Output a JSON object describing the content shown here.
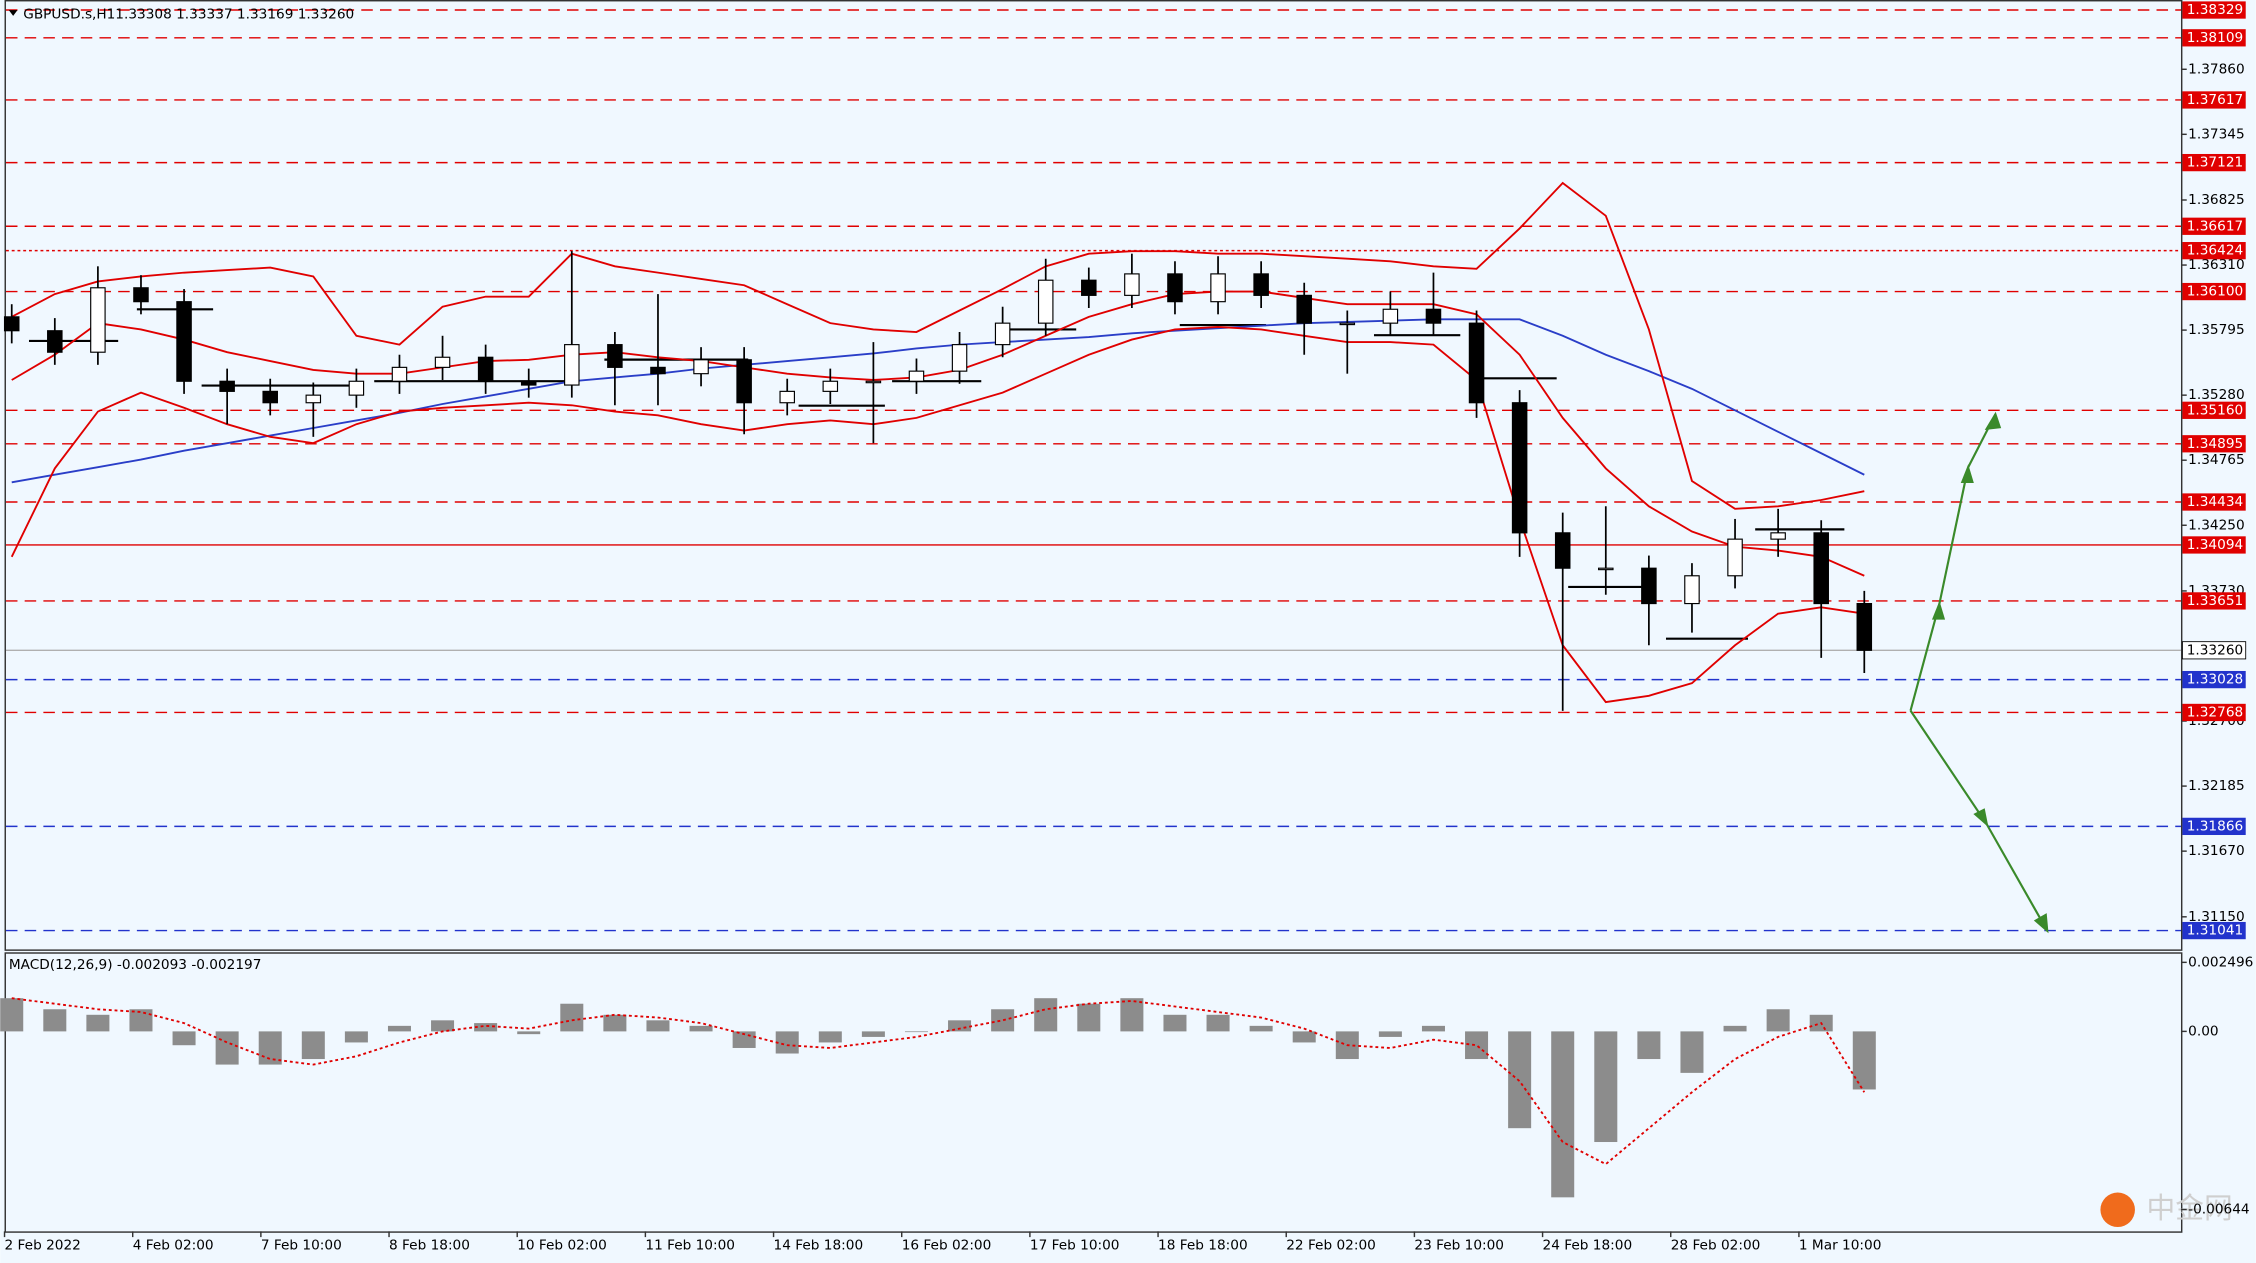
{
  "chart_data": {
    "type": "candlestick",
    "title": "GBPUSD.s,H1",
    "quote": "1.33308 1.33337 1.33169 1.33260",
    "watermark": "中金网",
    "x_labels": [
      "2 Feb 2022",
      "4 Feb 02:00",
      "7 Feb 10:00",
      "8 Feb 18:00",
      "10 Feb 02:00",
      "11 Feb 10:00",
      "14 Feb 18:00",
      "16 Feb 02:00",
      "17 Feb 10:00",
      "18 Feb 18:00",
      "22 Feb 02:00",
      "23 Feb 10:00",
      "24 Feb 18:00",
      "28 Feb 02:00",
      "1 Mar 10:00"
    ],
    "ylim": [
      1.30892,
      1.38397
    ],
    "yticks": [
      {
        "value": 1.3786,
        "label": "1.37860"
      },
      1.37345,
      1.36825,
      {
        "value": 1.3631,
        "label": "1.36310"
      },
      1.35795,
      {
        "value": 1.3528,
        "label": "1.35280"
      },
      1.34765,
      {
        "value": 1.3425,
        "label": "1.34250"
      },
      {
        "value": 1.3373,
        "label": "1.33730"
      },
      {
        "value": 1.327,
        "label": "1.32700"
      },
      1.32185,
      {
        "value": 1.3167,
        "label": "1.31670"
      },
      {
        "value": 1.3115,
        "label": "1.31150"
      }
    ],
    "open": [
      1.359,
      1.3579,
      1.3562,
      1.3613,
      1.3602,
      1.3539,
      1.3531,
      1.3522,
      1.3528,
      1.3539,
      1.355,
      1.3558,
      1.3539,
      1.3536,
      1.3568,
      1.355,
      1.3545,
      1.3556,
      1.3522,
      1.3531,
      1.3539,
      1.3539,
      1.3547,
      1.3568,
      1.3585,
      1.3619,
      1.3607,
      1.3624,
      1.3602,
      1.3624,
      1.3607,
      1.3585,
      1.3585,
      1.3596,
      1.3585,
      1.3522,
      1.3419,
      1.3391,
      1.3391,
      1.3363,
      1.3385,
      1.3414,
      1.3419,
      1.3363
    ],
    "high": [
      1.36,
      1.3589,
      1.363,
      1.3623,
      1.3612,
      1.3549,
      1.3541,
      1.3538,
      1.3549,
      1.356,
      1.3575,
      1.3568,
      1.3549,
      1.3642,
      1.3578,
      1.3608,
      1.3566,
      1.3566,
      1.3541,
      1.3549,
      1.357,
      1.3557,
      1.3578,
      1.3598,
      1.3636,
      1.3629,
      1.364,
      1.3634,
      1.3638,
      1.3634,
      1.3617,
      1.3595,
      1.361,
      1.3625,
      1.3595,
      1.3532,
      1.3435,
      1.344,
      1.3401,
      1.3395,
      1.343,
      1.3438,
      1.3429,
      1.3373
    ],
    "low": [
      1.3569,
      1.3552,
      1.3552,
      1.3592,
      1.3529,
      1.3505,
      1.3512,
      1.3495,
      1.3518,
      1.3529,
      1.354,
      1.3529,
      1.3526,
      1.3526,
      1.352,
      1.352,
      1.3535,
      1.3497,
      1.3512,
      1.3521,
      1.349,
      1.3529,
      1.3537,
      1.3558,
      1.3575,
      1.3597,
      1.3597,
      1.3592,
      1.3592,
      1.3597,
      1.356,
      1.3545,
      1.3575,
      1.3575,
      1.351,
      1.34,
      1.3278,
      1.337,
      1.333,
      1.334,
      1.3375,
      1.34,
      1.332,
      1.3308
    ],
    "close": [
      1.3579,
      1.3562,
      1.3613,
      1.3602,
      1.3539,
      1.3531,
      1.3522,
      1.3528,
      1.3539,
      1.355,
      1.3558,
      1.3539,
      1.3536,
      1.3568,
      1.355,
      1.3545,
      1.3556,
      1.3522,
      1.3531,
      1.3539,
      1.3539,
      1.3547,
      1.3568,
      1.3585,
      1.3619,
      1.3607,
      1.3624,
      1.3602,
      1.3624,
      1.3607,
      1.3585,
      1.3585,
      1.3596,
      1.3585,
      1.3522,
      1.3419,
      1.3391,
      1.3391,
      1.3363,
      1.3385,
      1.3414,
      1.3419,
      1.3363,
      1.3326
    ],
    "band_upper": [
      1.359,
      1.3608,
      1.3618,
      1.3622,
      1.3625,
      1.3627,
      1.3629,
      1.3622,
      1.3575,
      1.3568,
      1.3598,
      1.3606,
      1.3606,
      1.364,
      1.363,
      1.3625,
      1.362,
      1.3615,
      1.36,
      1.3585,
      1.358,
      1.3578,
      1.3595,
      1.3612,
      1.363,
      1.364,
      1.3642,
      1.3642,
      1.364,
      1.364,
      1.3638,
      1.3636,
      1.3634,
      1.363,
      1.3628,
      1.366,
      1.3696,
      1.367,
      1.358,
      1.346,
      1.3438,
      1.344,
      1.3445,
      1.3452
    ],
    "band_middle": [
      1.354,
      1.356,
      1.3585,
      1.358,
      1.3572,
      1.3562,
      1.3555,
      1.3548,
      1.3545,
      1.3545,
      1.355,
      1.3555,
      1.3556,
      1.356,
      1.3562,
      1.3558,
      1.3555,
      1.355,
      1.3545,
      1.3542,
      1.354,
      1.3542,
      1.3548,
      1.356,
      1.3575,
      1.359,
      1.36,
      1.3608,
      1.361,
      1.361,
      1.3605,
      1.36,
      1.36,
      1.36,
      1.3592,
      1.356,
      1.351,
      1.347,
      1.344,
      1.342,
      1.3408,
      1.3405,
      1.34,
      1.3385
    ],
    "band_lower": [
      1.34,
      1.347,
      1.3515,
      1.353,
      1.3518,
      1.3505,
      1.3495,
      1.349,
      1.3505,
      1.3515,
      1.3518,
      1.352,
      1.3522,
      1.352,
      1.3515,
      1.3512,
      1.3505,
      1.35,
      1.3505,
      1.3508,
      1.3505,
      1.351,
      1.352,
      1.353,
      1.3545,
      1.356,
      1.3572,
      1.358,
      1.3582,
      1.358,
      1.3575,
      1.357,
      1.357,
      1.3568,
      1.354,
      1.343,
      1.333,
      1.3285,
      1.329,
      1.33,
      1.333,
      1.3355,
      1.336,
      1.3355
    ],
    "ma": [
      1.3459,
      1.3465,
      1.3471,
      1.3477,
      1.3484,
      1.349,
      1.3496,
      1.3502,
      1.3508,
      1.3514,
      1.3521,
      1.3527,
      1.3533,
      1.3539,
      1.3542,
      1.3545,
      1.3549,
      1.3552,
      1.3555,
      1.3558,
      1.3561,
      1.3565,
      1.3568,
      1.357,
      1.3572,
      1.3574,
      1.3577,
      1.3579,
      1.3581,
      1.3583,
      1.3585,
      1.3586,
      1.3587,
      1.3588,
      1.3588,
      1.3588,
      1.3575,
      1.356,
      1.3547,
      1.3533,
      1.3516,
      1.3499,
      1.3482,
      1.3465
    ],
    "band_color": "#e00000",
    "ma_color": "#2a3ec8",
    "levels": [
      {
        "value": 1.38329,
        "color": "#e00000",
        "style": "dashed"
      },
      {
        "value": 1.38109,
        "color": "#e00000",
        "style": "dashed"
      },
      {
        "value": 1.37617,
        "color": "#e00000",
        "style": "dashed"
      },
      {
        "value": 1.37121,
        "color": "#e00000",
        "style": "dashed"
      },
      {
        "value": 1.36617,
        "color": "#e00000",
        "style": "dashed"
      },
      {
        "value": 1.36424,
        "color": "#e00000",
        "style": "dotted"
      },
      {
        "value": 1.361,
        "label": "1.36100",
        "color": "#e00000",
        "style": "dashed"
      },
      {
        "value": 1.3516,
        "label": "1.35160",
        "color": "#e00000",
        "style": "dashed"
      },
      {
        "value": 1.34895,
        "color": "#e00000",
        "style": "dashed"
      },
      {
        "value": 1.34434,
        "color": "#e00000",
        "style": "dashed"
      },
      {
        "value": 1.34094,
        "color": "#e00000",
        "style": "solid"
      },
      {
        "value": 1.33651,
        "color": "#e00000",
        "style": "dashed"
      },
      {
        "value": 1.3326,
        "label": "1.33260",
        "color": "#b0b0b0",
        "style": "solid"
      },
      {
        "value": 1.33028,
        "color": "#2233cc",
        "style": "dashed"
      },
      {
        "value": 1.32768,
        "color": "#e00000",
        "style": "dashed"
      },
      {
        "value": 1.31866,
        "color": "#2233cc",
        "style": "dashed"
      },
      {
        "value": 1.31041,
        "color": "#2233cc",
        "style": "dashed"
      }
    ],
    "macd": {
      "title": "MACD(12,26,9) -0.002093 -0.002197",
      "ylim": [
        -0.00723,
        0.00286
      ],
      "yticks": [
        0.002496,
        {
          "value": 0,
          "label": "0.00"
        },
        -0.00644
      ],
      "histogram": [
        0.0012,
        0.0008,
        0.0006,
        0.0008,
        -0.0005,
        -0.0012,
        -0.0012,
        -0.001,
        -0.0004,
        0.0002,
        0.0004,
        0.0003,
        -0.0001,
        0.001,
        0.0006,
        0.0004,
        0.0002,
        -0.0006,
        -0.0008,
        -0.0004,
        -0.0002,
        0.0,
        0.0004,
        0.0008,
        0.0012,
        0.001,
        0.0012,
        0.0006,
        0.0006,
        0.0002,
        -0.0004,
        -0.001,
        -0.0002,
        0.0002,
        -0.001,
        -0.0035,
        -0.006,
        -0.004,
        -0.001,
        -0.0015,
        0.0002,
        0.0008,
        0.0006,
        -0.0021
      ],
      "signal": [
        0.0012,
        0.001,
        0.0008,
        0.0007,
        0.0003,
        -0.0004,
        -0.001,
        -0.0012,
        -0.0009,
        -0.0004,
        0.0,
        0.0002,
        0.0001,
        0.0004,
        0.0006,
        0.0005,
        0.0003,
        -0.0001,
        -0.0005,
        -0.0006,
        -0.0004,
        -0.0002,
        0.0001,
        0.0004,
        0.0008,
        0.001,
        0.0011,
        0.0009,
        0.0007,
        0.0005,
        0.0001,
        -0.0005,
        -0.0006,
        -0.0003,
        -0.0005,
        -0.0018,
        -0.004,
        -0.0048,
        -0.0035,
        -0.0022,
        -0.001,
        -0.0002,
        0.0003,
        -0.0022
      ],
      "hist_color": "#8c8c8c",
      "signal_color": "#e00000"
    }
  }
}
